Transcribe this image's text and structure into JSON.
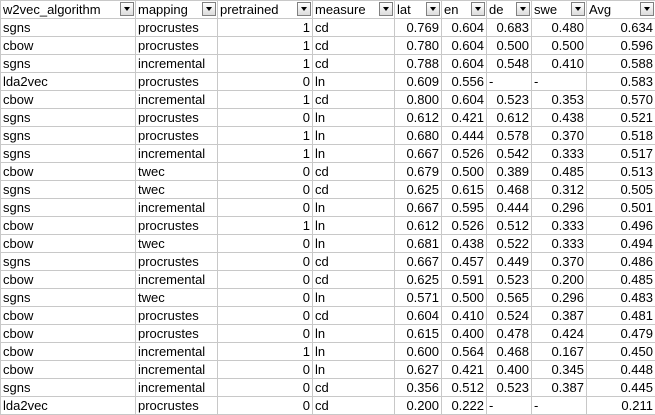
{
  "columns": [
    "w2vec_algorithm",
    "mapping",
    "pretrained",
    "measure",
    "lat",
    "en",
    "de",
    "swe",
    "Avg"
  ],
  "rows": [
    [
      "sgns",
      "procrustes",
      "1",
      "cd",
      "0.769",
      "0.604",
      "0.683",
      "0.480",
      "0.634"
    ],
    [
      "cbow",
      "procrustes",
      "1",
      "cd",
      "0.780",
      "0.604",
      "0.500",
      "0.500",
      "0.596"
    ],
    [
      "sgns",
      "incremental",
      "1",
      "cd",
      "0.788",
      "0.604",
      "0.548",
      "0.410",
      "0.588"
    ],
    [
      "lda2vec",
      "procrustes",
      "0",
      "ln",
      "0.609",
      "0.556",
      "-",
      "-",
      "0.583"
    ],
    [
      "cbow",
      "incremental",
      "1",
      "cd",
      "0.800",
      "0.604",
      "0.523",
      "0.353",
      "0.570"
    ],
    [
      "sgns",
      "procrustes",
      "0",
      "ln",
      "0.612",
      "0.421",
      "0.612",
      "0.438",
      "0.521"
    ],
    [
      "sgns",
      "procrustes",
      "1",
      "ln",
      "0.680",
      "0.444",
      "0.578",
      "0.370",
      "0.518"
    ],
    [
      "sgns",
      "incremental",
      "1",
      "ln",
      "0.667",
      "0.526",
      "0.542",
      "0.333",
      "0.517"
    ],
    [
      "cbow",
      "twec",
      "0",
      "cd",
      "0.679",
      "0.500",
      "0.389",
      "0.485",
      "0.513"
    ],
    [
      "sgns",
      "twec",
      "0",
      "cd",
      "0.625",
      "0.615",
      "0.468",
      "0.312",
      "0.505"
    ],
    [
      "sgns",
      "incremental",
      "0",
      "ln",
      "0.667",
      "0.595",
      "0.444",
      "0.296",
      "0.501"
    ],
    [
      "cbow",
      "procrustes",
      "1",
      "ln",
      "0.612",
      "0.526",
      "0.512",
      "0.333",
      "0.496"
    ],
    [
      "cbow",
      "twec",
      "0",
      "ln",
      "0.681",
      "0.438",
      "0.522",
      "0.333",
      "0.494"
    ],
    [
      "sgns",
      "procrustes",
      "0",
      "cd",
      "0.667",
      "0.457",
      "0.449",
      "0.370",
      "0.486"
    ],
    [
      "cbow",
      "incremental",
      "0",
      "cd",
      "0.625",
      "0.591",
      "0.523",
      "0.200",
      "0.485"
    ],
    [
      "sgns",
      "twec",
      "0",
      "ln",
      "0.571",
      "0.500",
      "0.565",
      "0.296",
      "0.483"
    ],
    [
      "cbow",
      "procrustes",
      "0",
      "cd",
      "0.604",
      "0.410",
      "0.524",
      "0.387",
      "0.481"
    ],
    [
      "cbow",
      "procrustes",
      "0",
      "ln",
      "0.615",
      "0.400",
      "0.478",
      "0.424",
      "0.479"
    ],
    [
      "cbow",
      "incremental",
      "1",
      "ln",
      "0.600",
      "0.564",
      "0.468",
      "0.167",
      "0.450"
    ],
    [
      "cbow",
      "incremental",
      "0",
      "ln",
      "0.627",
      "0.421",
      "0.400",
      "0.345",
      "0.448"
    ],
    [
      "sgns",
      "incremental",
      "0",
      "cd",
      "0.356",
      "0.512",
      "0.523",
      "0.387",
      "0.445"
    ],
    [
      "lda2vec",
      "procrustes",
      "0",
      "cd",
      "0.200",
      "0.222",
      "-",
      "-",
      "0.211"
    ]
  ]
}
